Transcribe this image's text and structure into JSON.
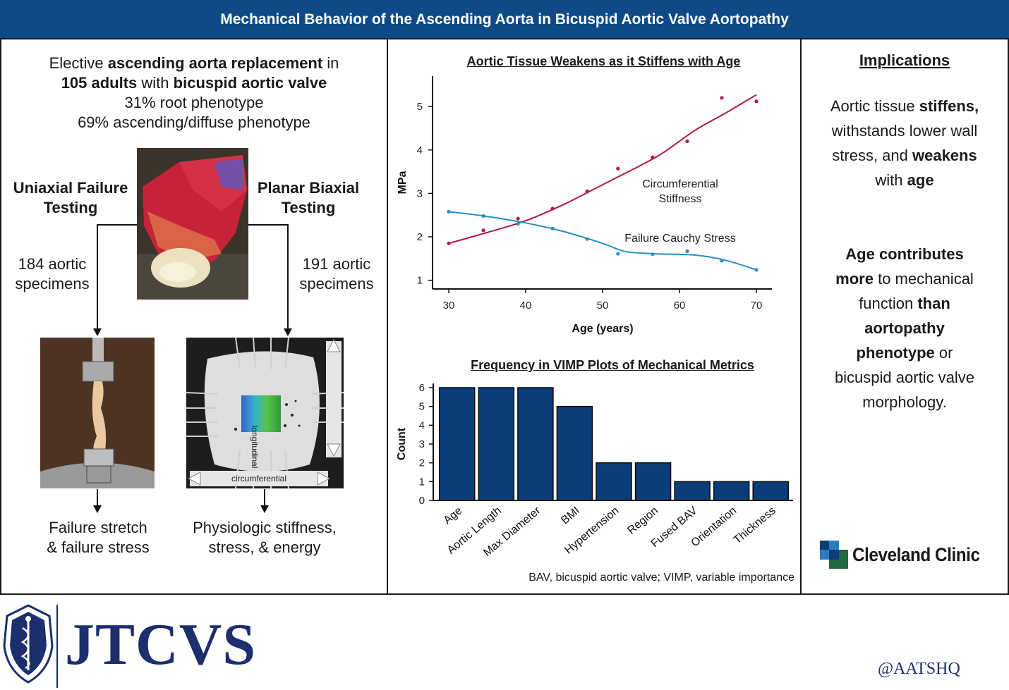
{
  "header": {
    "title": "Mechanical Behavior of the Ascending Aorta in Bicuspid Aortic Valve Aortopathy"
  },
  "left": {
    "intro_l1_a": "Elective ",
    "intro_l1_b": "ascending aorta replacement",
    "intro_l1_c": " in",
    "intro_l2_a": "105 adults",
    "intro_l2_b": " with ",
    "intro_l2_c": "bicuspid aortic valve",
    "intro_l3": "31% root phenotype",
    "intro_l4": "69% ascending/diffuse phenotype",
    "uniaxial_l1": "Uniaxial Failure",
    "uniaxial_l2": "Testing",
    "biaxial_l1": "Planar Biaxial",
    "biaxial_l2": "Testing",
    "uni_spec_l1": "184 aortic",
    "uni_spec_l2": "specimens",
    "bi_spec_l1": "191 aortic",
    "bi_spec_l2": "specimens",
    "uni_result_l1": "Failure stretch",
    "uni_result_l2": "& failure stress",
    "bi_result_l1": "Physiologic stiffness,",
    "bi_result_l2": "stress, & energy",
    "longitudinal": "longitudinal",
    "circumferential": "circumferential"
  },
  "colors": {
    "brand": "#0e4a87",
    "stiffness": "#b5174a",
    "stress": "#2a8fc4",
    "bar": "#0b3d7a"
  },
  "chart_data": [
    {
      "type": "line",
      "title": "Aortic Tissue Weakens as it Stiffens with Age",
      "xlabel": "Age (years)",
      "ylabel": "MPa",
      "xlim": [
        30,
        70
      ],
      "ylim": [
        0.8,
        5.7
      ],
      "xticks": [
        30,
        40,
        50,
        60,
        70
      ],
      "yticks": [
        1,
        2,
        3,
        4,
        5
      ],
      "series": [
        {
          "name": "Circumferential Stiffness",
          "label_l1": "Circumferential",
          "label_l2": "Stiffness",
          "points": [
            [
              30,
              1.85
            ],
            [
              34.5,
              2.15
            ],
            [
              39,
              2.42
            ],
            [
              43.5,
              2.65
            ],
            [
              48,
              3.05
            ],
            [
              52,
              3.57
            ],
            [
              56.5,
              3.83
            ],
            [
              61,
              4.2
            ],
            [
              65.5,
              5.2
            ],
            [
              70,
              5.12
            ]
          ],
          "curve": [
            [
              30,
              1.85
            ],
            [
              35,
              2.1
            ],
            [
              40,
              2.37
            ],
            [
              45,
              2.75
            ],
            [
              50,
              3.2
            ],
            [
              55,
              3.65
            ],
            [
              58,
              3.95
            ],
            [
              62,
              4.45
            ],
            [
              66,
              4.85
            ],
            [
              70,
              5.27
            ]
          ]
        },
        {
          "name": "Failure Cauchy Stress",
          "label_l1": "Failure Cauchy Stress",
          "points": [
            [
              30,
              2.58
            ],
            [
              34.5,
              2.48
            ],
            [
              39,
              2.3
            ],
            [
              43.5,
              2.19
            ],
            [
              48,
              1.95
            ],
            [
              52,
              1.61
            ],
            [
              56.5,
              1.6
            ],
            [
              61,
              1.67
            ],
            [
              65.5,
              1.45
            ],
            [
              70,
              1.24
            ]
          ],
          "curve": [
            [
              30,
              2.58
            ],
            [
              35,
              2.47
            ],
            [
              40,
              2.32
            ],
            [
              45,
              2.12
            ],
            [
              50,
              1.85
            ],
            [
              53,
              1.66
            ],
            [
              57,
              1.61
            ],
            [
              62,
              1.58
            ],
            [
              66,
              1.46
            ],
            [
              70,
              1.24
            ]
          ]
        }
      ]
    },
    {
      "type": "bar",
      "title": "Frequency in VIMP Plots of Mechanical Metrics",
      "xlabel": "",
      "ylabel": "Count",
      "ylim": [
        0,
        6.2
      ],
      "yticks": [
        0,
        1,
        2,
        3,
        4,
        5,
        6
      ],
      "categories": [
        "Age",
        "Aortic Length",
        "Max Diameter",
        "BMI",
        "Hypertension",
        "Region",
        "Fused BAV",
        "Orientation",
        "Thickness"
      ],
      "values": [
        6,
        6,
        6,
        5,
        2,
        2,
        1,
        1,
        1
      ],
      "footnote": "BAV, bicuspid aortic valve; VIMP, variable importance"
    }
  ],
  "right": {
    "heading": "Implications",
    "p1_a": "Aortic tissue ",
    "p1_b": "stiffens,",
    "p1_c": "withstands lower wall",
    "p1_d": "stress, and ",
    "p1_e": "weakens",
    "p1_f": "with ",
    "p1_g": "age",
    "p2_a": "Age contributes",
    "p2_b": "more",
    "p2_c": " to mechanical",
    "p2_d": "function ",
    "p2_e": "than",
    "p2_f": "aortopathy",
    "p2_g": "phenotype",
    "p2_h": " or",
    "p2_i": "bicuspid aortic valve",
    "p2_j": "morphology.",
    "logo_text": "Cleveland Clinic"
  },
  "footer": {
    "journal": "JTCVS",
    "handle": "@AATSHQ"
  }
}
